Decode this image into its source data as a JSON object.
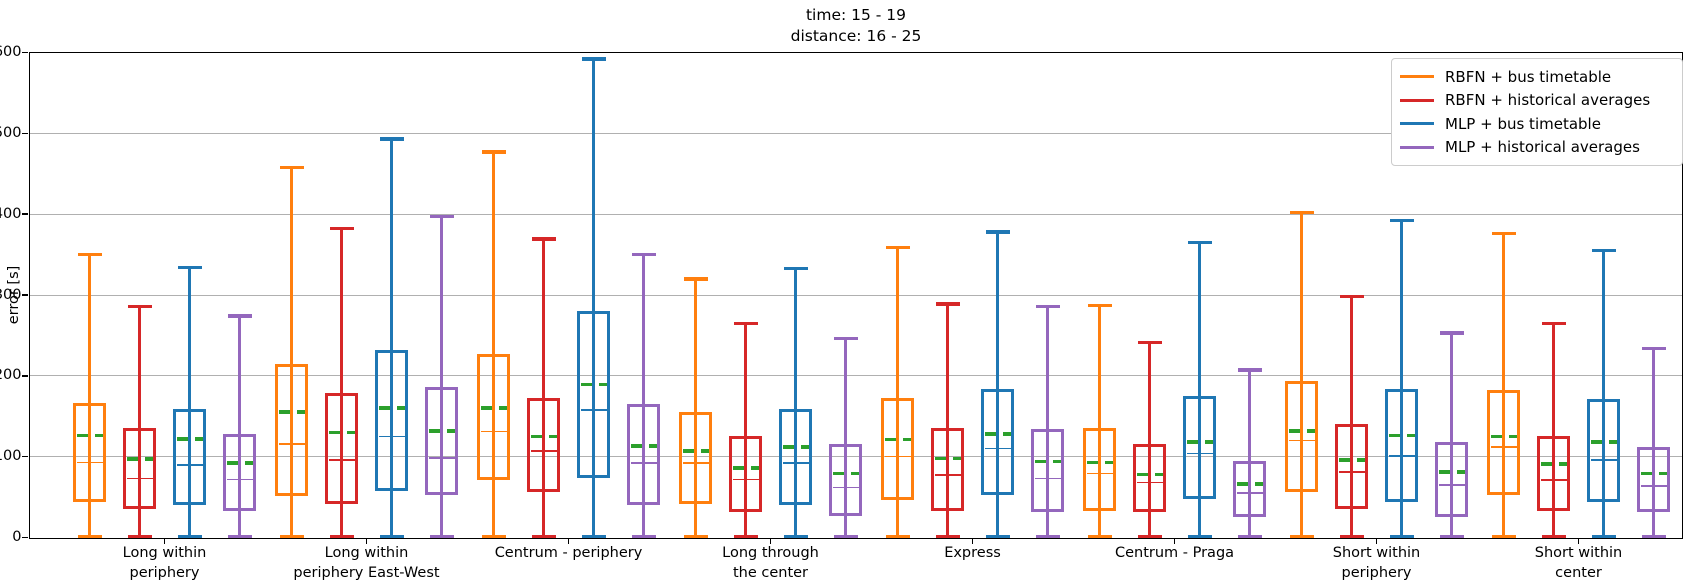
{
  "figure": {
    "title_line1": "time: 15 - 19",
    "title_line2": "distance: 16 - 25",
    "ylabel": "error [s]"
  },
  "legend": {
    "items": [
      {
        "label": "RBFN + bus timetable",
        "color": "#ff7f0e"
      },
      {
        "label": "RBFN + historical averages",
        "color": "#d62728"
      },
      {
        "label": "MLP + bus timetable",
        "color": "#1f77b4"
      },
      {
        "label": "MLP + historical averages",
        "color": "#9467bd"
      }
    ]
  },
  "chart_data": {
    "type": "boxplot",
    "title": "time: 15 - 19\ndistance: 16 - 25",
    "xlabel": "",
    "ylabel": "error [s]",
    "ylim": [
      0,
      600
    ],
    "yticks": [
      0,
      100,
      200,
      300,
      400,
      500,
      600
    ],
    "grid": "horizontal",
    "legend_position": "upper right",
    "mean_line": {
      "style": "dashed",
      "color": "#2ca02c"
    },
    "grid_color": "#b0b0b0",
    "categories": [
      "Long within\nperiphery",
      "Long within\nperiphery East-West",
      "Centrum - periphery",
      "Long through\nthe center",
      "Express",
      "Centrum - Praga",
      "Short within\nperiphery",
      "Short within center"
    ],
    "box_value_order": [
      "whisker_low",
      "q1",
      "median",
      "mean",
      "q3",
      "whisker_high"
    ],
    "series": [
      {
        "name": "RBFN + bus timetable",
        "color": "#ff7f0e",
        "boxes": [
          [
            1,
            44,
            93,
            126,
            166,
            350
          ],
          [
            1,
            51,
            116,
            155,
            215,
            458
          ],
          [
            1,
            71,
            131,
            160,
            227,
            477
          ],
          [
            1,
            41,
            92,
            107,
            155,
            320
          ],
          [
            1,
            46,
            100,
            121,
            172,
            359
          ],
          [
            1,
            33,
            79,
            93,
            136,
            287
          ],
          [
            1,
            56,
            120,
            132,
            193,
            402
          ],
          [
            1,
            52,
            112,
            125,
            183,
            376
          ]
        ]
      },
      {
        "name": "RBFN + historical averages",
        "color": "#d62728",
        "boxes": [
          [
            1,
            35,
            73,
            97,
            136,
            286
          ],
          [
            1,
            42,
            96,
            130,
            179,
            382
          ],
          [
            1,
            56,
            107,
            125,
            173,
            369
          ],
          [
            1,
            32,
            72,
            86,
            125,
            265
          ],
          [
            1,
            33,
            77,
            98,
            136,
            289
          ],
          [
            1,
            31,
            68,
            78,
            116,
            241
          ],
          [
            1,
            35,
            81,
            96,
            141,
            298
          ],
          [
            1,
            33,
            71,
            91,
            126,
            265
          ]
        ]
      },
      {
        "name": "MLP + bus timetable",
        "color": "#1f77b4",
        "boxes": [
          [
            1,
            40,
            90,
            122,
            159,
            334
          ],
          [
            1,
            57,
            125,
            160,
            232,
            493
          ],
          [
            1,
            73,
            158,
            189,
            280,
            592
          ],
          [
            1,
            40,
            92,
            112,
            159,
            333
          ],
          [
            1,
            53,
            110,
            128,
            184,
            378
          ],
          [
            1,
            48,
            104,
            118,
            175,
            365
          ],
          [
            1,
            44,
            101,
            126,
            184,
            392
          ],
          [
            1,
            44,
            96,
            118,
            171,
            355
          ]
        ]
      },
      {
        "name": "MLP + historical averages",
        "color": "#9467bd",
        "boxes": [
          [
            1,
            33,
            72,
            92,
            128,
            274
          ],
          [
            1,
            52,
            98,
            132,
            186,
            397
          ],
          [
            1,
            40,
            92,
            113,
            165,
            350
          ],
          [
            1,
            27,
            62,
            79,
            116,
            246
          ],
          [
            1,
            31,
            73,
            94,
            134,
            286
          ],
          [
            1,
            25,
            55,
            66,
            95,
            207
          ],
          [
            1,
            25,
            65,
            81,
            118,
            253
          ],
          [
            1,
            31,
            64,
            79,
            112,
            234
          ]
        ]
      }
    ]
  }
}
